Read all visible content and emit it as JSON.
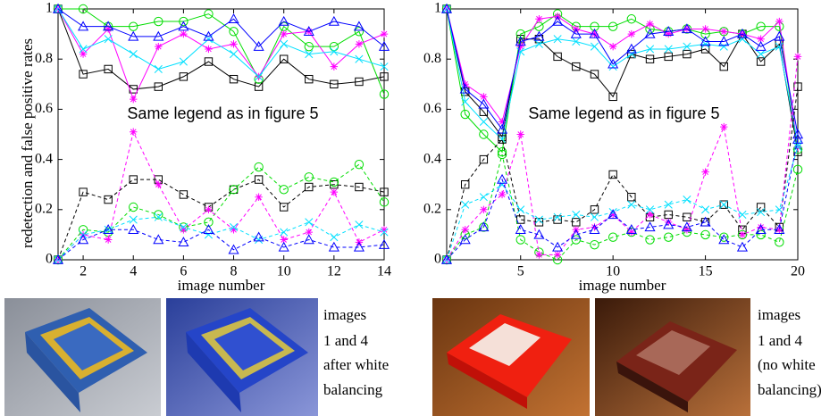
{
  "chart_data": [
    {
      "type": "line",
      "ylabel": "redetection and false positive rates",
      "xlabel": "image number",
      "annotation": "Same legend as in figure 5",
      "x": [
        1,
        2,
        3,
        4,
        5,
        6,
        7,
        8,
        9,
        10,
        11,
        12,
        13,
        14
      ],
      "xlim": [
        1,
        14
      ],
      "xticks": [
        2,
        4,
        6,
        8,
        10,
        12,
        14
      ],
      "ylim": [
        0,
        1
      ],
      "yticks": [
        0,
        0.2,
        0.4,
        0.6,
        0.8,
        1
      ],
      "grid": false,
      "series": [
        {
          "color": "#000000",
          "marker": "square",
          "dashed": false,
          "values": [
            1,
            0.74,
            0.76,
            0.68,
            0.69,
            0.73,
            0.79,
            0.72,
            0.69,
            0.8,
            0.72,
            0.7,
            0.71,
            0.73
          ]
        },
        {
          "color": "#00dd00",
          "marker": "circle",
          "dashed": false,
          "values": [
            1,
            1.0,
            0.93,
            0.93,
            0.95,
            0.95,
            0.98,
            0.91,
            0.72,
            0.93,
            0.85,
            0.85,
            0.91,
            0.66
          ]
        },
        {
          "color": "#ff00ff",
          "marker": "star",
          "dashed": false,
          "values": [
            1,
            0.82,
            0.92,
            0.64,
            0.85,
            0.9,
            0.84,
            0.86,
            0.73,
            0.9,
            0.91,
            0.77,
            0.86,
            0.9
          ]
        },
        {
          "color": "#00e0ff",
          "marker": "x",
          "dashed": false,
          "values": [
            1,
            0.84,
            0.88,
            0.82,
            0.76,
            0.79,
            0.88,
            0.82,
            0.73,
            0.86,
            0.82,
            0.83,
            0.8,
            0.77
          ]
        },
        {
          "color": "#0000ff",
          "marker": "triangle",
          "dashed": false,
          "values": [
            1,
            0.93,
            0.93,
            0.89,
            0.89,
            0.93,
            0.89,
            0.96,
            0.85,
            0.95,
            0.91,
            0.95,
            0.93,
            0.85
          ]
        },
        {
          "color": "#000000",
          "marker": "square",
          "dashed": true,
          "values": [
            0,
            0.27,
            0.24,
            0.32,
            0.32,
            0.26,
            0.21,
            0.28,
            0.32,
            0.21,
            0.29,
            0.3,
            0.29,
            0.27
          ]
        },
        {
          "color": "#00dd00",
          "marker": "circle",
          "dashed": true,
          "values": [
            0,
            0.12,
            0.11,
            0.21,
            0.18,
            0.13,
            0.15,
            0.28,
            0.37,
            0.28,
            0.33,
            0.31,
            0.38,
            0.23
          ]
        },
        {
          "color": "#ff00ff",
          "marker": "star",
          "dashed": true,
          "values": [
            0,
            0.1,
            0.08,
            0.51,
            0.3,
            0.12,
            0.2,
            0.12,
            0.25,
            0.08,
            0.11,
            0.27,
            0.07,
            0.12
          ]
        },
        {
          "color": "#00e0ff",
          "marker": "x",
          "dashed": true,
          "values": [
            0,
            0.1,
            0.12,
            0.16,
            0.17,
            0.13,
            0.1,
            0.13,
            0.08,
            0.11,
            0.15,
            0.09,
            0.14,
            0.11
          ]
        },
        {
          "color": "#0000ff",
          "marker": "triangle",
          "dashed": true,
          "values": [
            0,
            0.08,
            0.12,
            0.12,
            0.08,
            0.07,
            0.12,
            0.04,
            0.09,
            0.05,
            0.08,
            0.05,
            0.05,
            0.06
          ]
        }
      ]
    },
    {
      "type": "line",
      "xlabel": "image number",
      "annotation": "Same legend as in figure 5",
      "x": [
        1,
        2,
        3,
        4,
        5,
        6,
        7,
        8,
        9,
        10,
        11,
        12,
        13,
        14,
        15,
        16,
        17,
        18,
        19,
        20
      ],
      "xlim": [
        1,
        20
      ],
      "xticks": [
        5,
        10,
        15,
        20
      ],
      "ylim": [
        0,
        1
      ],
      "yticks": [
        0,
        0.2,
        0.4,
        0.6,
        0.8,
        1
      ],
      "grid": false,
      "series": [
        {
          "color": "#000000",
          "marker": "square",
          "dashed": false,
          "values": [
            1,
            0.67,
            0.59,
            0.49,
            0.88,
            0.88,
            0.81,
            0.77,
            0.74,
            0.65,
            0.82,
            0.8,
            0.81,
            0.82,
            0.84,
            0.77,
            0.9,
            0.79,
            0.86,
            0.43
          ]
        },
        {
          "color": "#00dd00",
          "marker": "circle",
          "dashed": false,
          "values": [
            1,
            0.58,
            0.5,
            0.43,
            0.9,
            0.93,
            0.98,
            0.93,
            0.93,
            0.93,
            0.96,
            0.92,
            0.91,
            0.92,
            0.9,
            0.91,
            0.9,
            0.93,
            0.93,
            0.44
          ]
        },
        {
          "color": "#ff00ff",
          "marker": "star",
          "dashed": false,
          "values": [
            1,
            0.7,
            0.65,
            0.55,
            0.85,
            0.96,
            0.97,
            0.92,
            0.9,
            0.85,
            0.9,
            0.94,
            0.9,
            0.92,
            0.92,
            0.91,
            0.9,
            0.88,
            0.95,
            0.45
          ]
        },
        {
          "color": "#00e0ff",
          "marker": "x",
          "dashed": false,
          "values": [
            1,
            0.63,
            0.55,
            0.48,
            0.83,
            0.86,
            0.88,
            0.87,
            0.85,
            0.77,
            0.82,
            0.84,
            0.84,
            0.85,
            0.86,
            0.85,
            0.88,
            0.82,
            0.85,
            0.46
          ]
        },
        {
          "color": "#0000ff",
          "marker": "triangle",
          "dashed": false,
          "values": [
            1,
            0.68,
            0.62,
            0.52,
            0.87,
            0.89,
            0.95,
            0.9,
            0.9,
            0.78,
            0.84,
            0.9,
            0.91,
            0.92,
            0.87,
            0.87,
            0.9,
            0.85,
            0.89,
            0.5
          ]
        },
        {
          "color": "#000000",
          "marker": "square",
          "dashed": true,
          "values": [
            0,
            0.3,
            0.4,
            0.48,
            0.16,
            0.15,
            0.16,
            0.15,
            0.2,
            0.34,
            0.25,
            0.17,
            0.18,
            0.17,
            0.15,
            0.22,
            0.12,
            0.21,
            0.13,
            0.69
          ]
        },
        {
          "color": "#00dd00",
          "marker": "circle",
          "dashed": true,
          "values": [
            0,
            0.1,
            0.13,
            0.42,
            0.08,
            0.03,
            0.0,
            0.08,
            0.06,
            0.09,
            0.11,
            0.08,
            0.09,
            0.11,
            0.1,
            0.09,
            0.1,
            0.1,
            0.07,
            0.36
          ]
        },
        {
          "color": "#ff00ff",
          "marker": "star",
          "dashed": true,
          "values": [
            0,
            0.12,
            0.2,
            0.26,
            0.5,
            0.02,
            0.02,
            0.12,
            0.13,
            0.18,
            0.11,
            0.18,
            0.15,
            0.12,
            0.35,
            0.53,
            0.1,
            0.13,
            0.12,
            0.81
          ]
        },
        {
          "color": "#00e0ff",
          "marker": "x",
          "dashed": true,
          "values": [
            0,
            0.22,
            0.25,
            0.3,
            0.2,
            0.16,
            0.17,
            0.18,
            0.17,
            0.19,
            0.22,
            0.2,
            0.22,
            0.24,
            0.2,
            0.22,
            0.18,
            0.19,
            0.2,
            0.45
          ]
        },
        {
          "color": "#0000ff",
          "marker": "triangle",
          "dashed": true,
          "values": [
            0,
            0.08,
            0.13,
            0.32,
            0.12,
            0.1,
            0.05,
            0.1,
            0.12,
            0.18,
            0.12,
            0.13,
            0.14,
            0.13,
            0.15,
            0.08,
            0.05,
            0.12,
            0.12,
            0.48
          ]
        }
      ]
    }
  ],
  "photos": [
    {
      "caption": [
        "images",
        "1 and 4",
        "after white",
        "balancing"
      ]
    },
    {
      "caption": [
        "images",
        "1 and 4",
        "(no white",
        "balancing)"
      ]
    }
  ]
}
